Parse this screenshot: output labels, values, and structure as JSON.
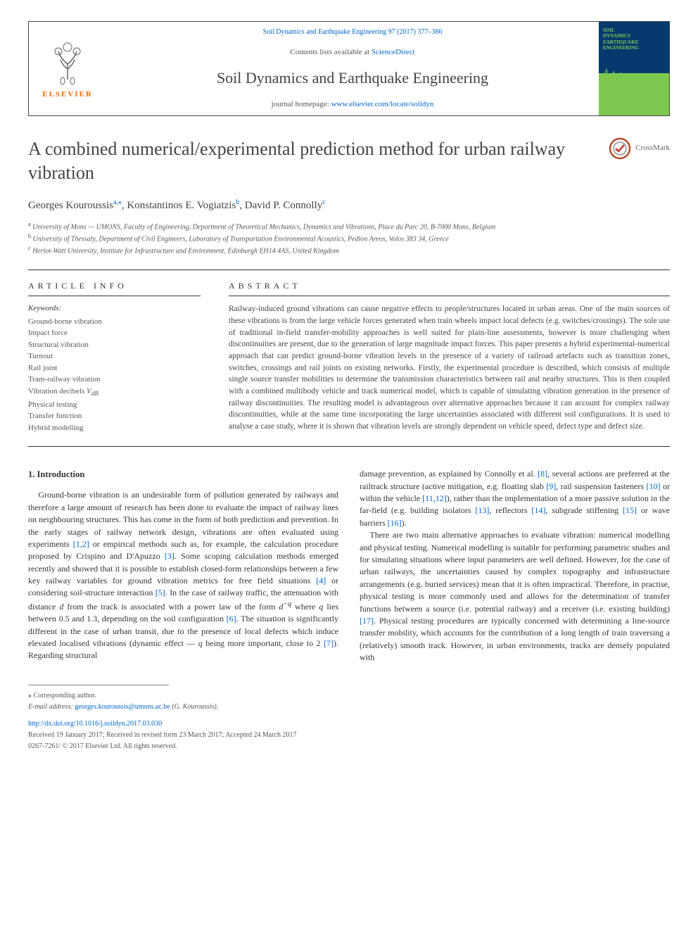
{
  "header": {
    "journal_ref": "Soil Dynamics and Earthquake Engineering 97 (2017) 377–386",
    "contents_text": "Contents lists available at ",
    "contents_link": "ScienceDirect",
    "journal_name": "Soil Dynamics and Earthquake Engineering",
    "homepage_label": "journal homepage: ",
    "homepage_link": "www.elsevier.com/locate/soildyn",
    "elsevier_label": "ELSEVIER",
    "cover_line1": "SOIL",
    "cover_line2": "DYNAMICS",
    "cover_line3": "EARTHQUAKE",
    "cover_line4": "ENGINEERING"
  },
  "article": {
    "title": "A combined numerical/experimental prediction method for urban railway vibration",
    "crossmark_label": "CrossMark",
    "authors_html": "Georges Kouroussis<sup>a,</sup><sup>⁎</sup>, Konstantinos E. Vogiatzis<sup>b</sup>, David P. Connolly<sup>c</sup>",
    "affiliations": [
      {
        "sup": "a",
        "text": "University of Mons — UMONS, Faculty of Engineering, Department of Theoretical Mechanics, Dynamics and Vibrations, Place du Parc 20, B-7000 Mons, Belgium"
      },
      {
        "sup": "b",
        "text": "University of Thessaly, Department of Civil Engineers, Laboratory of Transportation Environmental Acoustics, Pedion Areos, Volos 383 34, Greece"
      },
      {
        "sup": "c",
        "text": "Heriot-Watt University, Institute for Infrastructure and Environment, Edinburgh EH14 4AS, United Kingdom"
      }
    ]
  },
  "info": {
    "heading": "ARTICLE INFO",
    "keywords_label": "Keywords:",
    "keywords": [
      "Ground-borne vibration",
      "Impact force",
      "Structural vibration",
      "Turnout",
      "Rail joint",
      "Tram-railway vibration",
      "Vibration decibels V_dB",
      "Physical testing",
      "Transfer function",
      "Hybrid modelling"
    ]
  },
  "abstract": {
    "heading": "ABSTRACT",
    "text": "Railway-induced ground vibrations can cause negative effects to people/structures located in urban areas. One of the main sources of these vibrations is from the large vehicle forces generated when train wheels impact local defects (e.g. switches/crossings). The sole use of traditional in-field transfer-mobility approaches is well suited for plain-line assessments, however is more challenging when discontinuities are present, due to the generation of large magnitude impact forces. This paper presents a hybrid experimental-numerical approach that can predict ground-borne vibration levels in the presence of a variety of railroad artefacts such as transition zones, switches, crossings and rail joints on existing networks. Firstly, the experimental procedure is described, which consists of multiple single source transfer mobilities to determine the transmission characteristics between rail and nearby structures. This is then coupled with a combined multibody vehicle and track numerical model, which is capable of simulating vibration generation in the presence of railway discontinuities. The resulting model is advantageous over alternative approaches because it can account for complex railway discontinuities, while at the same time incorporating the large uncertainties associated with different soil configurations. It is used to analyse a case study, where it is shown that vibration levels are strongly dependent on vehicle speed, defect type and defect size."
  },
  "body": {
    "section_number": "1.",
    "section_title": "Introduction",
    "col1_html": "Ground-borne vibration is an undesirable form of pollution generated by railways and therefore a large amount of research has been done to evaluate the impact of railway lines on neighbouring structures. This has come in the form of both prediction and prevention. In the early stages of railway network design, vibrations are often evaluated using experiments <span class=\"ref-link\">[1,2]</span> or empirical methods such as, for example, the calculation procedure proposed by Crispino and D'Apuzzo <span class=\"ref-link\">[3]</span>. Some scoping calculation methods emerged recently and showed that it is possible to establish closed-form relationships between a few key railway variables for ground vibration metrics for free field situations <span class=\"ref-link\">[4]</span> or considering soil-structure interaction <span class=\"ref-link\">[5]</span>. In the case of railway traffic, the attenuation with distance <span class=\"math-var\">d</span> from the track is associated with a power law of the form <span class=\"math-var\">d<sup>−q</sup></span> where <span class=\"math-var\">q</span> lies between 0.5 and 1.3, depending on the soil configuration <span class=\"ref-link\">[6]</span>. The situation is significantly different in the case of urban transit, due to the presence of local defects which induce elevated localised vibrations (dynamic effect — <span class=\"math-var\">q</span> being more important, close to 2 <span class=\"ref-link\">[7]</span>). Regarding structural",
    "col2_html": "damage prevention, as explained by Connolly et al. <span class=\"ref-link\">[8]</span>, several actions are preferred at the railtrack structure (active mitigation, e.g. floating slab <span class=\"ref-link\">[9]</span>, rail suspension fasteners <span class=\"ref-link\">[10]</span> or within the vehicle <span class=\"ref-link\">[11,12]</span>), rather than the implementation of a more passive solution in the far-field (e.g. building isolators <span class=\"ref-link\">[13]</span>, reflectors <span class=\"ref-link\">[14]</span>, subgrade stiffening <span class=\"ref-link\">[15]</span> or wave barriers <span class=\"ref-link\">[16]</span>).",
    "col2_p2_html": "There are two main alternative approaches to evaluate vibration: numerical modelling and physical testing. Numerical modelling is suitable for performing parametric studies and for simulating situations where input parameters are well defined. However, for the case of urban railways, the uncertainties caused by complex topography and infrastructure arrangements (e.g. buried services) mean that it is often impractical. Therefore, in practise, physical testing is more commonly used and allows for the determination of transfer functions between a source (i.e. potential railway) and a receiver (i.e. existing building) <span class=\"ref-link\">[17]</span>. Physical testing procedures are typically concerned with determining a line-source transfer mobility, which accounts for the contribution of a long length of train traversing a (relatively) smooth track. However, in urban environments, tracks are densely populated with"
  },
  "footer": {
    "corr_label": "⁎ Corresponding author.",
    "email_label": "E-mail address: ",
    "email": "georges.kouroussis@umons.ac.be",
    "email_suffix": " (G. Kouroussis).",
    "doi": "http://dx.doi.org/10.1016/j.soildyn.2017.03.030",
    "received": "Received 19 January 2017; Received in revised form 23 March 2017; Accepted 24 March 2017",
    "copyright": "0267-7261/ © 2017 Elsevier Ltd. All rights reserved."
  },
  "colors": {
    "link": "#0066cc",
    "elsevier_orange": "#ff6b00",
    "cover_blue": "#063a6e",
    "cover_green": "#7ec850",
    "text": "#333333"
  }
}
